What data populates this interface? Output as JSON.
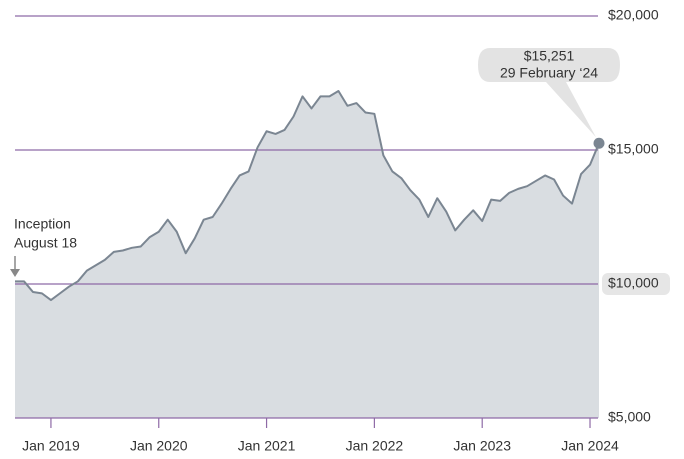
{
  "chart_data": {
    "type": "area",
    "categories": [
      null,
      null,
      null,
      null,
      "Jan 2019",
      null,
      null,
      null,
      null,
      null,
      null,
      null,
      null,
      null,
      null,
      null,
      "Jan 2020",
      null,
      null,
      null,
      null,
      null,
      null,
      null,
      null,
      null,
      null,
      null,
      "Jan 2021",
      null,
      null,
      null,
      null,
      null,
      null,
      null,
      null,
      null,
      null,
      null,
      "Jan 2022",
      null,
      null,
      null,
      null,
      null,
      null,
      null,
      null,
      null,
      null,
      null,
      "Jan 2023",
      null,
      null,
      null,
      null,
      null,
      null,
      null,
      null,
      null,
      null,
      null,
      "Jan 2024",
      null
    ],
    "values": [
      10100,
      10100,
      9700,
      9650,
      9400,
      9650,
      9900,
      10100,
      10500,
      10700,
      10900,
      11200,
      11250,
      11350,
      11400,
      11750,
      11950,
      12400,
      11950,
      11150,
      11700,
      12400,
      12500,
      13000,
      13550,
      14050,
      14200,
      15100,
      15700,
      15600,
      15750,
      16250,
      17000,
      16550,
      17000,
      17000,
      17200,
      16650,
      16750,
      16400,
      16350,
      14800,
      14200,
      13950,
      13500,
      13150,
      12500,
      13200,
      12700,
      12000,
      12400,
      12750,
      12350,
      13150,
      13100,
      13400,
      13550,
      13650,
      13850,
      14050,
      13900,
      13300,
      13000,
      14100,
      14450,
      15251
    ],
    "value_labels": [
      null,
      null,
      null,
      null,
      null,
      null,
      null,
      null,
      null,
      null,
      null,
      null,
      null,
      null,
      null,
      null,
      null,
      null,
      null,
      null,
      null,
      null,
      null,
      null,
      null,
      null,
      null,
      null,
      null,
      null,
      null,
      null,
      null,
      null,
      null,
      null,
      null,
      null,
      null,
      null,
      null,
      null,
      null,
      null,
      null,
      null,
      null,
      null,
      null,
      null,
      null,
      null,
      null,
      null,
      null,
      null,
      null,
      null,
      null,
      null,
      null,
      null,
      null,
      null,
      null,
      "$15,251"
    ],
    "callout_date": "29 February ‘24",
    "inception_label": [
      "Inception",
      "August 18"
    ],
    "color": "#7b8692",
    "fill": "#d9dde1",
    "grid_color": "#8e6aa6",
    "ylim": [
      5000,
      20000
    ],
    "yticks": [
      {
        "value": 5000,
        "label": "$5,000"
      },
      {
        "value": 10000,
        "label": "$10,000"
      },
      {
        "value": 15000,
        "label": "$15,000"
      },
      {
        "value": 20000,
        "label": "$20,000"
      }
    ],
    "grid": true
  }
}
